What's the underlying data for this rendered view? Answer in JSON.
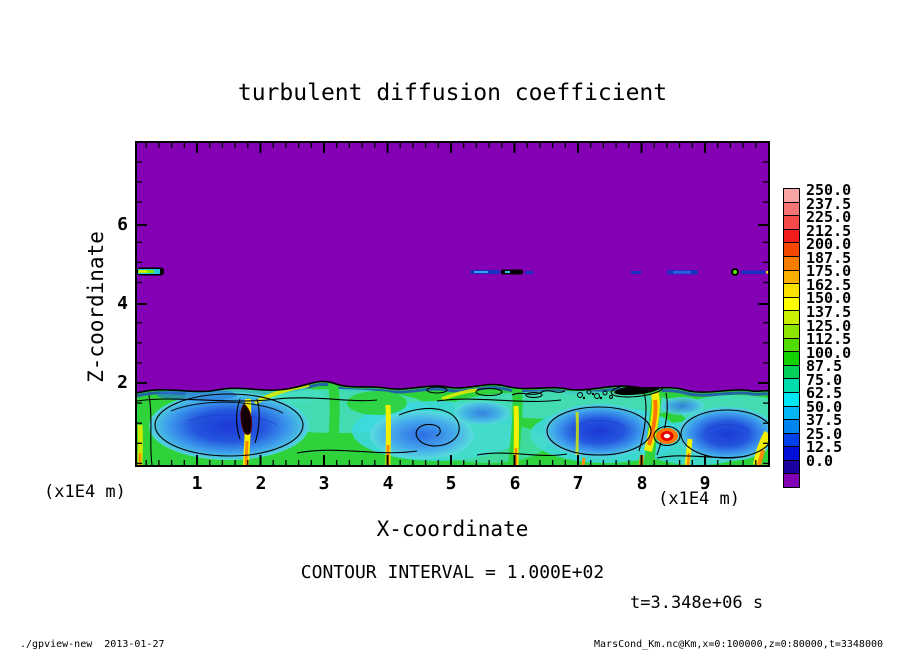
{
  "title": "turbulent diffusion coefficient",
  "axes": {
    "x_label": "X-coordinate",
    "y_label": "Z-coordinate",
    "x_unit": "(x1E4 m)",
    "y_unit": "(x1E4 m)",
    "x_ticks": [
      "1",
      "2",
      "3",
      "4",
      "5",
      "6",
      "7",
      "8",
      "9"
    ],
    "y_ticks": [
      "6",
      "4",
      "2"
    ]
  },
  "annotations": {
    "contour_interval": "CONTOUR INTERVAL = 1.000E+02",
    "time_stamp": "t=3.348e+06 s"
  },
  "footer": {
    "left": "./gpview-new  2013-01-27",
    "right": "MarsCond_Km.nc@Km,x=0:100000,z=0:80000,t=3348000"
  },
  "colorbar": {
    "labels": [
      "250.0",
      "237.5",
      "225.0",
      "212.5",
      "200.0",
      "187.5",
      "175.0",
      "162.5",
      "150.0",
      "137.5",
      "125.0",
      "112.5",
      "100.0",
      "87.5",
      "75.0",
      "62.5",
      "50.0",
      "37.5",
      "25.0",
      "12.5",
      "0.0"
    ],
    "colors": [
      "#F8A4A4",
      "#F67474",
      "#F54A4A",
      "#F31C1C",
      "#F44700",
      "#F67D00",
      "#F9AF00",
      "#FCE100",
      "#FFFF00",
      "#C8F000",
      "#8CE600",
      "#50DC00",
      "#14D200",
      "#00D058",
      "#00DCAC",
      "#00E6F2",
      "#00B6F6",
      "#0084F0",
      "#0040E8",
      "#0010D8",
      "#1C00A0",
      "#8400B4"
    ]
  },
  "plot_colors": {
    "background_field": "#8400B4",
    "mixed_layer_green": "#2ED23A",
    "frame": "#000000"
  },
  "chart_data": {
    "type": "heatmap",
    "title": "turbulent diffusion coefficient",
    "xlabel": "X-coordinate",
    "ylabel": "Z-coordinate",
    "x_unit_scale": "x1E4 m",
    "y_unit_scale": "x1E4 m",
    "xlim": [
      0,
      10
    ],
    "ylim": [
      0,
      8
    ],
    "x_ticks": [
      1,
      2,
      3,
      4,
      5,
      6,
      7,
      8,
      9
    ],
    "y_ticks": [
      2,
      4,
      6
    ],
    "colorbar_levels": [
      0,
      12.5,
      25,
      37.5,
      50,
      62.5,
      75,
      87.5,
      100,
      112.5,
      125,
      137.5,
      150,
      162.5,
      175,
      187.5,
      200,
      212.5,
      225,
      237.5,
      250
    ],
    "contour_interval": 100,
    "time": "t=3.348e+06 s",
    "source_field": "Km from MarsCond_Km.nc, x=0:100000, z=0:80000, t=3348000",
    "description": "Vertical cross-section of turbulent diffusion coefficient. Field is ~0 (purple) everywhere above z~2e4 m except thin detached streaks near z~4.8e4 m. Below z~2e4 m a turbulent convective boundary layer shows green/cyan high-diffusivity filaments (~75-150) wrapping blue low-value eddies (~25-75), with yellow/orange plumes (~150-200) and localized extreme maxima.",
    "features": [
      {
        "name": "quiescent region",
        "value_range": [
          0,
          12.5
        ],
        "extent": "z from ~2 to 8 (x1E4 m), all x"
      },
      {
        "name": "turbulent mixed layer",
        "value_range": [
          25,
          200
        ],
        "extent": "z from 0 to ~2 (x1E4 m), all x"
      },
      {
        "name": "detached thin streaks at z~4.8",
        "x_locations": [
          [
            0,
            0.5
          ],
          [
            4.3,
            5.3
          ],
          [
            7.9,
            7.9
          ],
          [
            8.4,
            8.9
          ],
          [
            9.4,
            10
          ]
        ],
        "value_range": [
          12.5,
          150
        ]
      },
      {
        "name": "dark off-scale maximum",
        "x": 1.8,
        "z": [
          0.8,
          1.5
        ]
      },
      {
        "name": "dark off-scale maximum",
        "x": [
          7.6,
          8.3
        ],
        "z": [
          1.8,
          2.0
        ]
      },
      {
        "name": "white peak (>250) with red ring",
        "x": 8.4,
        "z": 0.7
      },
      {
        "name": "updraft plumes (yellow/orange)",
        "x_locations": [
          1.8,
          4.0,
          6.0,
          8.2,
          8.7,
          9.8
        ]
      }
    ]
  }
}
